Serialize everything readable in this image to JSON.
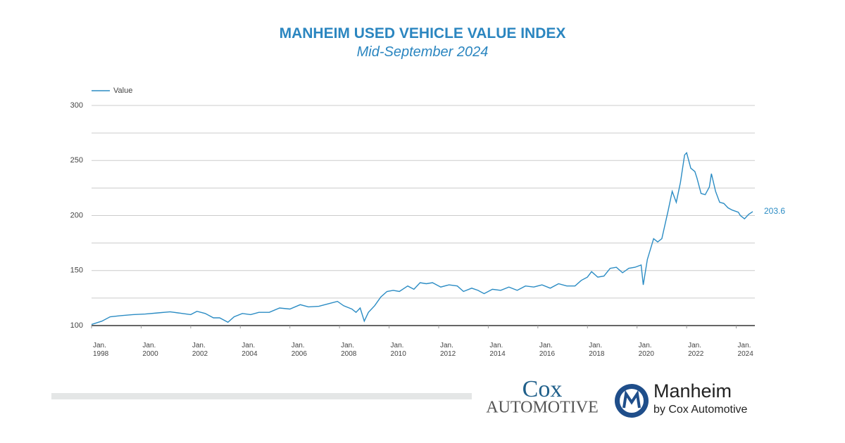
{
  "chart_data": {
    "type": "line",
    "title": "MANHEIM USED VEHICLE VALUE INDEX",
    "subtitle": "Mid-September 2024",
    "x": [
      "1998-01",
      "1998-06",
      "1998-10",
      "1999-03",
      "1999-09",
      "2000-03",
      "2000-09",
      "2001-03",
      "2001-09",
      "2002-01",
      "2002-04",
      "2002-08",
      "2002-12",
      "2003-03",
      "2003-07",
      "2003-10",
      "2004-02",
      "2004-06",
      "2004-10",
      "2005-03",
      "2005-08",
      "2006-01",
      "2006-06",
      "2006-10",
      "2007-03",
      "2007-08",
      "2007-12",
      "2008-03",
      "2008-07",
      "2008-09",
      "2008-11",
      "2009-01",
      "2009-03",
      "2009-06",
      "2009-09",
      "2009-12",
      "2010-03",
      "2010-06",
      "2010-10",
      "2011-01",
      "2011-04",
      "2011-07",
      "2011-10",
      "2012-02",
      "2012-06",
      "2012-10",
      "2013-01",
      "2013-05",
      "2013-08",
      "2013-11",
      "2014-03",
      "2014-07",
      "2014-11",
      "2015-03",
      "2015-07",
      "2015-11",
      "2016-03",
      "2016-07",
      "2016-11",
      "2017-03",
      "2017-07",
      "2017-10",
      "2018-01",
      "2018-03",
      "2018-06",
      "2018-09",
      "2018-12",
      "2019-03",
      "2019-06",
      "2019-09",
      "2019-12",
      "2020-03",
      "2020-04",
      "2020-06",
      "2020-09",
      "2020-11",
      "2021-01",
      "2021-04",
      "2021-06",
      "2021-08",
      "2021-10",
      "2021-12",
      "2022-01",
      "2022-03",
      "2022-05",
      "2022-06",
      "2022-08",
      "2022-10",
      "2022-12",
      "2023-01",
      "2023-03",
      "2023-05",
      "2023-07",
      "2023-09",
      "2023-11",
      "2024-02",
      "2024-03",
      "2024-05",
      "2024-07",
      "2024-09"
    ],
    "series": [
      {
        "name": "Value",
        "color": "#2b8cc4",
        "values": [
          101,
          104,
          108,
          109,
          110,
          110.5,
          111.5,
          112.5,
          111,
          110,
          113,
          111,
          107,
          107,
          103,
          108,
          111,
          110,
          112,
          112,
          116,
          115,
          119,
          117,
          117.5,
          120,
          122,
          118,
          115,
          112,
          116,
          104,
          112,
          118,
          126,
          131,
          132,
          131,
          136,
          133,
          139,
          138,
          139,
          135,
          137,
          136,
          131,
          134,
          132,
          129,
          133,
          132,
          135,
          132,
          136,
          135,
          137,
          134,
          138,
          136,
          136,
          141,
          144,
          149,
          144,
          145,
          152,
          153,
          148,
          152,
          153,
          155,
          137,
          160,
          179,
          176,
          179,
          204,
          222,
          212,
          230,
          255,
          257,
          243,
          240,
          234,
          220,
          219,
          226,
          238,
          222,
          212,
          211,
          207,
          205,
          203,
          200,
          197,
          201,
          203.6
        ]
      }
    ],
    "xlim": [
      "1998-01",
      "2024-09"
    ],
    "xticks": [
      {
        "value": "1998-01",
        "label": "Jan. 1998"
      },
      {
        "value": "2000-01",
        "label": "Jan. 2000"
      },
      {
        "value": "2002-01",
        "label": "Jan. 2002"
      },
      {
        "value": "2004-01",
        "label": "Jan. 2004"
      },
      {
        "value": "2006-01",
        "label": "Jan. 2006"
      },
      {
        "value": "2008-01",
        "label": "Jan. 2008"
      },
      {
        "value": "2010-01",
        "label": "Jan. 2010"
      },
      {
        "value": "2012-01",
        "label": "Jan. 2012"
      },
      {
        "value": "2014-01",
        "label": "Jan. 2014"
      },
      {
        "value": "2016-01",
        "label": "Jan. 2016"
      },
      {
        "value": "2018-01",
        "label": "Jan. 2018"
      },
      {
        "value": "2020-01",
        "label": "Jan. 2020"
      },
      {
        "value": "2022-01",
        "label": "Jan. 2022"
      },
      {
        "value": "2024-01",
        "label": "Jan. 2024"
      }
    ],
    "ylim": [
      100,
      300
    ],
    "yticks": [
      100,
      150,
      200,
      250,
      300
    ],
    "ygrid": [
      100,
      125,
      150,
      175,
      200,
      225,
      250,
      275,
      300
    ],
    "grid": true,
    "legend": "top-left"
  },
  "footer": {
    "cox": [
      "Cox",
      "Automotive"
    ],
    "manheim": [
      "Manheim",
      "by Cox Automotive"
    ]
  }
}
